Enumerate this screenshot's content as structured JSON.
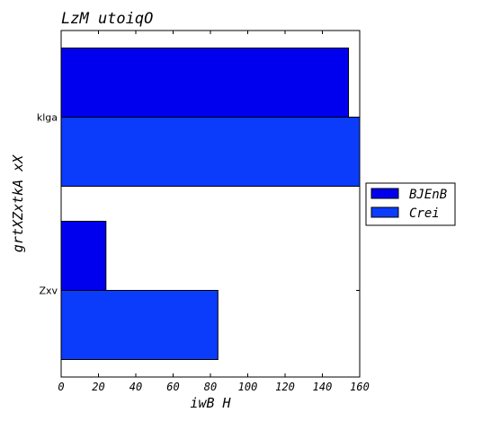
{
  "chart_data": {
    "type": "bar",
    "orientation": "horizontal",
    "title": "LzM  utoiqO",
    "xlabel": "iwB H",
    "ylabel": "grtXZxtkA xX",
    "categories": [
      "klga",
      "Zxv"
    ],
    "series": [
      {
        "name": "BJEnB",
        "values": [
          154,
          24
        ],
        "color": "#0000ee"
      },
      {
        "name": "Crei",
        "values": [
          160,
          84
        ],
        "color": "#0b3cfb"
      }
    ],
    "xlim": [
      0,
      160
    ],
    "xticks": [
      0,
      20,
      40,
      60,
      80,
      100,
      120,
      140,
      160
    ],
    "grid": false,
    "legend_position": "right"
  }
}
